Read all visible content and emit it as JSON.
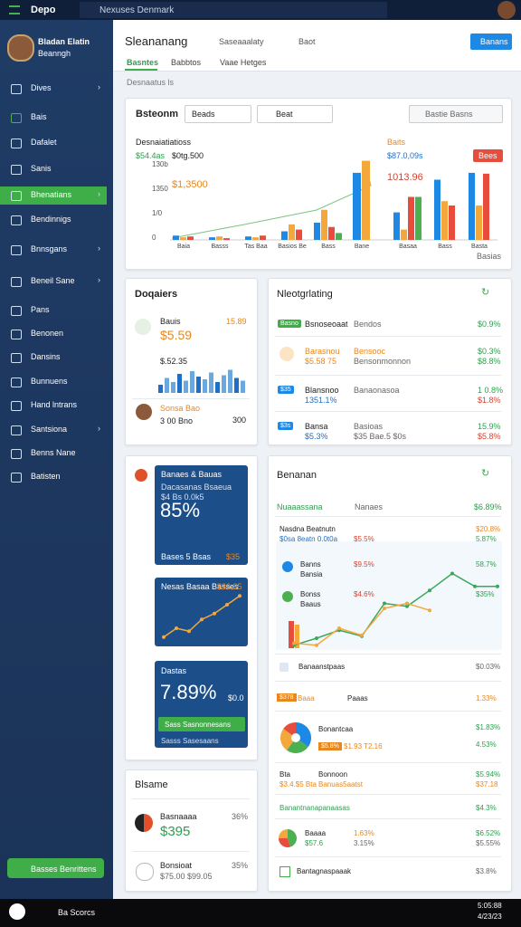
{
  "topbar": {
    "brand": "Depo",
    "search": "Nexuses Denmark",
    "clock": "5:05:88",
    "date": "4/23/23",
    "task_search": "Ba Scorcs"
  },
  "profile": {
    "name": "Bladan Elatin",
    "role": "Beanngh"
  },
  "menu": [
    "Dives",
    "Bais",
    "Dafalet",
    "Sanis",
    "Bhenatians",
    "Bendinnigs",
    "Bnnsgans",
    "Beneil Sane",
    "Pans",
    "Benonen",
    "Dansins",
    "Bunnuens",
    "Hand lntrans",
    "Santsiona",
    "Benns Nane",
    "Batisten"
  ],
  "menu_active": 4,
  "sidebar_button": "Basses Benrittens",
  "header": {
    "title": "Sleananang",
    "links": [
      "Saseaaalaty",
      "Baot"
    ],
    "button": "Banans",
    "tabs": [
      "Basntes",
      "Babbtos",
      "Vaae Hetges"
    ],
    "breadcrumb": "Desnaatus ls"
  },
  "overview": {
    "title": "Bsteonm",
    "filters": [
      "Beads",
      "Beat"
    ],
    "search": "Bastie Basns",
    "caption": "Desnaiatiatioss",
    "metric_label": "$54.4as",
    "metric_value": "$0tg.500",
    "metric_sub": "$1,3500",
    "right_caption": "Baits",
    "right_value": "$87.0,09s",
    "right_sub": "1013.96",
    "badge": "Bees",
    "axis_labels": [
      "130b",
      "1350",
      "1/0",
      "0"
    ],
    "footnote": "Basias",
    "ylim": [
      0,
      100
    ],
    "colors": [
      "#1e88e5",
      "#f4a73b",
      "#e74c3c",
      "#4caf50"
    ],
    "groups": [
      {
        "label": "Baia",
        "values": [
          5,
          3,
          4
        ]
      },
      {
        "label": "Basss",
        "values": [
          3,
          4,
          2
        ]
      },
      {
        "label": "Tas Baa",
        "values": [
          4,
          3,
          5
        ]
      },
      {
        "label": "Basios Be",
        "values": [
          10,
          18,
          12
        ]
      },
      {
        "label": "Bass",
        "values": [
          20,
          35,
          15,
          8
        ]
      },
      {
        "label": "Bane",
        "values": [
          78,
          92
        ]
      },
      {
        "label": "Basaa",
        "values": [
          32,
          12,
          50,
          50
        ]
      },
      {
        "label": "Bass",
        "values": [
          70,
          45,
          40
        ]
      },
      {
        "label": "Basta",
        "values": [
          78,
          40,
          77
        ]
      }
    ]
  },
  "devices": {
    "title": "Doqaiers",
    "item1": {
      "name": "Bauis",
      "value": "$5.59",
      "side": "15.89"
    },
    "spark_label": "$.52.35",
    "spark": [
      30,
      55,
      40,
      70,
      45,
      80,
      60,
      50,
      75,
      40,
      65,
      85,
      55,
      45
    ],
    "item2": {
      "name": "Sonsa Bao",
      "sub": "3 00 Bno",
      "side": "300"
    }
  },
  "listing": {
    "title": "Nleotgrlating",
    "rows": [
      {
        "badge": "Basno",
        "name": "Bsnoseoaat",
        "mid": "Bendos",
        "right": "$0.9%"
      },
      {
        "name": "Barasnou",
        "value": "$5.58 75",
        "mid": "Bensooc",
        "mid2": "Bensonmonnon",
        "right": "$0.3%",
        "right2": "$8.8%"
      },
      {
        "badge": "$35",
        "name": "Blansnoo",
        "value": "1351.1%",
        "mid": "Banaonasoa",
        "right": "1 0.8%",
        "right2": "$1.8%"
      },
      {
        "badge": "$3s",
        "name": "Bansa",
        "value": "$5.3%",
        "mid": "Basioas",
        "mid2": "$35 Bae.5 $0s",
        "right": "15.9%",
        "right2": "$5.8%"
      }
    ]
  },
  "tiles": {
    "tile1": {
      "title": "Banaes & Bauas",
      "sub": "Dacasanas Bsaeua",
      "sub2": "$4 Bs 0.0k5",
      "value": "85%",
      "foot": "Bases 5 Bsas",
      "foot_value": "$35"
    },
    "tile2": {
      "title": "Nesas Basaa Basses",
      "value": "$36.35",
      "line": [
        5,
        20,
        15,
        35,
        45,
        60,
        75
      ]
    },
    "tile3": {
      "title": "Dastas",
      "value": "7.89%",
      "side": "$0.0",
      "button": "Sass Sasnonnesans",
      "foot": "Sasss Sasesaans"
    }
  },
  "balance": {
    "title": "Blsame",
    "item1": {
      "name": "Basnaaaa",
      "value": "$395",
      "right": "36%"
    },
    "item2": {
      "name": "Bonsioat",
      "sub": "$75.00 $99.05",
      "right": "35%"
    }
  },
  "bantam": {
    "title": "Benanan",
    "head": {
      "name": "Nuaaassana",
      "mid": "Nanaes",
      "right": "$6.89%"
    },
    "rows_top": [
      {
        "name": "Nasdna Beatnutn",
        "right": "$20.8%"
      },
      {
        "name": "$0sa 8eatn 0.0t0a",
        "value": "$5.5%",
        "right": "5.87%"
      },
      {
        "name": "Banns",
        "sub": "Bansia",
        "value": "$9.5%",
        "right": "58.7%"
      },
      {
        "name": "Bonss",
        "sub": "Baaus",
        "value": "$4.6%",
        "right": "$35%"
      }
    ],
    "ylim": [
      0,
      100
    ],
    "series": [
      {
        "color": "#3aa858",
        "values": [
          3,
          10,
          18,
          12,
          45,
          42,
          58,
          75,
          62,
          62
        ]
      },
      {
        "color": "#f4a73b",
        "values": [
          5,
          3,
          20,
          13,
          40,
          45,
          38,
          null,
          null,
          null
        ]
      }
    ],
    "row_after": {
      "name": "Banaanstpaas",
      "right": "$0.03%"
    },
    "row_badge": {
      "badge": "$378",
      "name": "Baaa",
      "mid": "Paaas",
      "right": "1.33%"
    },
    "pie1": {
      "values": [
        35,
        25,
        25,
        15
      ],
      "colors": [
        "#1e88e5",
        "#4caf50",
        "#f4a73b",
        "#e74c3c"
      ],
      "name": "Bonantcaa",
      "value": "$5.8%",
      "sub": "$1.93 T2.16",
      "right": "$1.83%",
      "right2": "4.53%"
    },
    "row_pair": {
      "name": "Bta",
      "mid": "Bonnoon",
      "sub": "$3.4.$5 Bta",
      "sub2": "Banuas5aatst",
      "right": "$5.94%",
      "right2": "$37.18"
    },
    "row_green": {
      "name": "Banantnanapanaasas",
      "right": "$4.3%"
    },
    "pie2": {
      "values": [
        45,
        30,
        25
      ],
      "colors": [
        "#4caf50",
        "#e74c3c",
        "#f4a73b"
      ],
      "name": "Baaaa",
      "value": "$57.6",
      "mid": "1.63%",
      "mid2": "3.15%",
      "right": "$6.52%",
      "right2": "$5.55%"
    },
    "row_last": {
      "name": "Bantagnaspaaak",
      "right": "$3.8%"
    }
  }
}
